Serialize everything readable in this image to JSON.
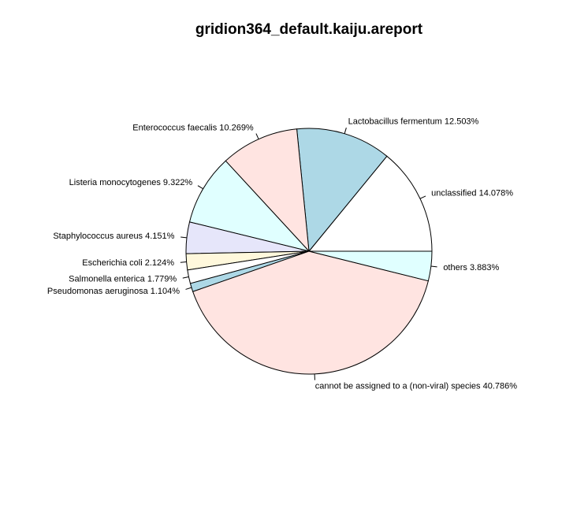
{
  "chart_data": {
    "type": "pie",
    "title": "gridion364_default.kaiju.areport",
    "direction": "counterclockwise",
    "start_angle_deg": 0,
    "slices": [
      {
        "label": "unclassified",
        "percent": 14.078,
        "color": "#FFFFFF",
        "display": "unclassified 14.078%"
      },
      {
        "label": "Lactobacillus fermentum",
        "percent": 12.503,
        "color": "#ADD8E6",
        "display": "Lactobacillus fermentum 12.503%"
      },
      {
        "label": "Enterococcus faecalis",
        "percent": 10.269,
        "color": "#FFE4E1",
        "display": "Enterococcus faecalis 10.269%"
      },
      {
        "label": "Listeria monocytogenes",
        "percent": 9.322,
        "color": "#E0FFFF",
        "display": "Listeria monocytogenes 9.322%"
      },
      {
        "label": "Staphylococcus aureus",
        "percent": 4.151,
        "color": "#E6E6FA",
        "display": "Staphylococcus aureus 4.151%"
      },
      {
        "label": "Escherichia coli",
        "percent": 2.124,
        "color": "#FFF8DC",
        "display": "Escherichia coli 2.124%"
      },
      {
        "label": "Salmonella enterica",
        "percent": 1.779,
        "color": "#FFFFFF",
        "display": "Salmonella enterica 1.779%"
      },
      {
        "label": "Pseudomonas aeruginosa",
        "percent": 1.104,
        "color": "#ADD8E6",
        "display": "Pseudomonas aeruginosa 1.104%"
      },
      {
        "label": "cannot be assigned to a (non-viral) species",
        "percent": 40.786,
        "color": "#FFE4E1",
        "display": "cannot be assigned to a (non-viral) species 40.786%"
      },
      {
        "label": "others",
        "percent": 3.883,
        "color": "#E0FFFF",
        "display": "others 3.883%"
      }
    ]
  }
}
